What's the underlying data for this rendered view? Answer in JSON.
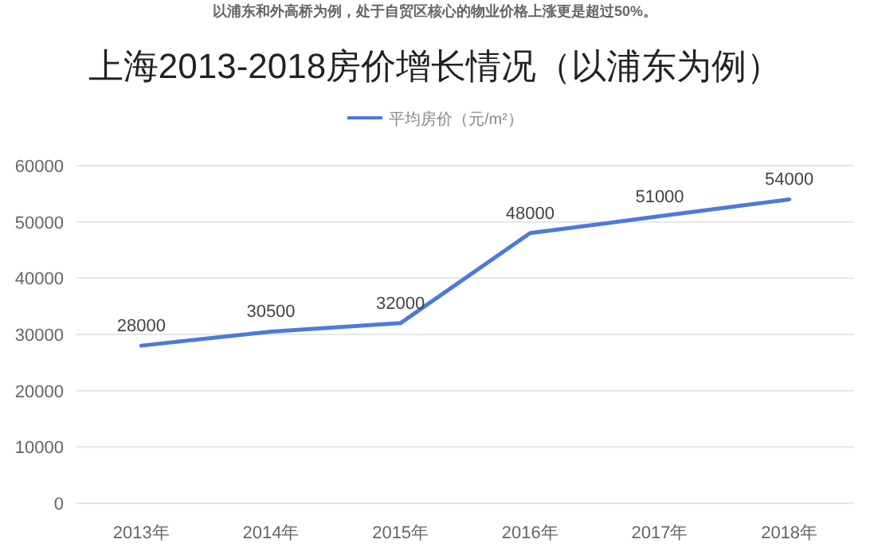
{
  "chart_data": {
    "type": "line",
    "title": "上海2013-2018房价增长情况（以浦东为例）",
    "annotations": [
      "以浦东和外高桥为例，处于自贸区核心的物业价格上涨更是超过50%。"
    ],
    "categories": [
      "2013年",
      "2014年",
      "2015年",
      "2016年",
      "2017年",
      "2018年"
    ],
    "series": [
      {
        "name": "平均房价（元/m²）",
        "color": "#4a7bd8",
        "values": [
          28000,
          30500,
          32000,
          48000,
          51000,
          54000
        ]
      }
    ],
    "ylim": [
      0,
      60000
    ],
    "yticks": [
      0,
      10000,
      20000,
      30000,
      40000,
      50000,
      60000
    ],
    "grid": "y",
    "legend": "top",
    "data_labels": true,
    "marker": "none"
  }
}
